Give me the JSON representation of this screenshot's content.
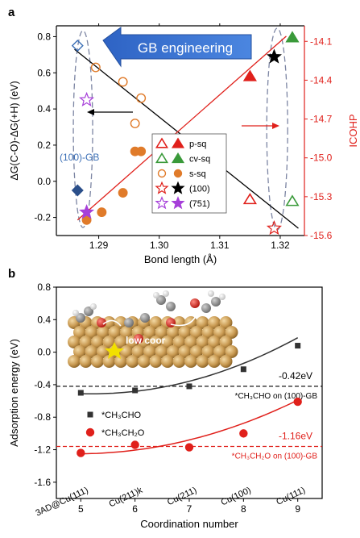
{
  "chart_data": [
    {
      "panel": "a",
      "type": "scatter",
      "xlabel": "Bond length (Å)",
      "ylabel": "ΔG(C-O)-ΔG(+H) (eV)",
      "y2label": "ICOHP",
      "xlim": [
        1.283,
        1.324
      ],
      "ylim": [
        -0.3,
        0.86
      ],
      "y2lim": [
        -15.6,
        -13.98
      ],
      "xticks": [
        "1.29",
        "1.30",
        "1.31",
        "1.32"
      ],
      "xtick_values": [
        1.29,
        1.3,
        1.31,
        1.32
      ],
      "yticks": [
        "-0.2",
        "0.0",
        "0.2",
        "0.4",
        "0.6",
        "0.8"
      ],
      "ytick_values": [
        -0.2,
        0.0,
        0.2,
        0.4,
        0.6,
        0.8
      ],
      "y2ticks": [
        "-15.6",
        "-15.3",
        "-15.0",
        "-14.7",
        "-14.4",
        "-14.1"
      ],
      "y2tick_values": [
        -15.6,
        -15.3,
        -15.0,
        -14.7,
        -14.4,
        -14.1
      ],
      "arrow_label": "GB engineering",
      "annotation": "(100)-GB",
      "legend": [
        {
          "label": "p-sq",
          "color": "#e0201b",
          "marker": "triangle"
        },
        {
          "label": "cv-sq",
          "color": "#3a9a3a",
          "marker": "triangle"
        },
        {
          "label": "s-sq",
          "color": "#e07b2a",
          "marker": "circle"
        },
        {
          "label": "(100)",
          "color": "#e0201b",
          "filled_color": "#000000",
          "marker": "star"
        },
        {
          "label": "(751)",
          "color": "#a63fd9",
          "filled_color": "#a63fd9",
          "marker": "star"
        }
      ],
      "series": [
        {
          "name": "p-sq",
          "axis": "left",
          "marker": "triangle",
          "filled": false,
          "color": "#e0201b",
          "points": [
            [
              1.315,
              -0.1
            ]
          ]
        },
        {
          "name": "cv-sq",
          "axis": "left",
          "marker": "triangle",
          "filled": false,
          "color": "#3a9a3a",
          "points": [
            [
              1.322,
              -0.11
            ]
          ]
        },
        {
          "name": "s-sq",
          "axis": "left",
          "marker": "circle",
          "filled": false,
          "color": "#e07b2a",
          "points": [
            [
              1.2895,
              0.63
            ],
            [
              1.294,
              0.55
            ],
            [
              1.296,
              0.32
            ],
            [
              1.297,
              0.46
            ]
          ]
        },
        {
          "name": "(100)",
          "axis": "left",
          "marker": "star",
          "filled": false,
          "color": "#e0201b",
          "points": [
            [
              1.319,
              -0.26
            ]
          ]
        },
        {
          "name": "(751)",
          "axis": "left",
          "marker": "star",
          "filled": false,
          "color": "#a63fd9",
          "points": [
            [
              1.288,
              0.45
            ]
          ]
        },
        {
          "name": "p-sq",
          "axis": "right",
          "marker": "triangle",
          "filled": true,
          "color": "#e0201b",
          "points": [
            [
              1.315,
              -14.37
            ]
          ]
        },
        {
          "name": "cv-sq",
          "axis": "right",
          "marker": "triangle",
          "filled": true,
          "color": "#3a9a3a",
          "points": [
            [
              1.322,
              -14.07
            ]
          ]
        },
        {
          "name": "s-sq",
          "axis": "right",
          "marker": "circle",
          "filled": true,
          "color": "#e07b2a",
          "points": [
            [
              1.288,
              -15.48
            ],
            [
              1.2905,
              -15.42
            ],
            [
              1.294,
              -15.27
            ],
            [
              1.296,
              -14.95
            ],
            [
              1.297,
              -14.95
            ]
          ]
        },
        {
          "name": "(100)",
          "axis": "right",
          "marker": "star",
          "filled": true,
          "color": "#000000",
          "points": [
            [
              1.319,
              -14.22
            ]
          ]
        },
        {
          "name": "(751)",
          "axis": "right",
          "marker": "star",
          "filled": true,
          "color": "#a63fd9",
          "points": [
            [
              1.288,
              -15.42
            ]
          ]
        },
        {
          "name": "diamond",
          "axis": "left",
          "marker": "diamond",
          "filled": false,
          "color": "#3b6fb6",
          "points": [
            [
              1.2865,
              0.75
            ]
          ]
        },
        {
          "name": "diamond",
          "axis": "left",
          "marker": "diamond",
          "filled": true,
          "color": "#2b4f8a",
          "points": [
            [
              1.2865,
              -0.05
            ]
          ]
        }
      ],
      "fit_lines": [
        {
          "axis": "left",
          "color": "#000000",
          "from": [
            1.286,
            0.73
          ],
          "to": [
            1.323,
            -0.26
          ]
        },
        {
          "axis": "right",
          "color": "#e0201b",
          "from": [
            1.2865,
            -15.48
          ],
          "to": [
            1.321,
            -14.06
          ]
        }
      ]
    },
    {
      "panel": "b",
      "type": "scatter",
      "xlabel": "Coordination number",
      "ylabel": "Adsorption energy (eV)",
      "xlim": [
        4.55,
        9.45
      ],
      "ylim": [
        -1.8,
        0.8
      ],
      "xticks": [
        "5",
        "6",
        "7",
        "8",
        "9"
      ],
      "xtick_values": [
        5,
        6,
        7,
        8,
        9
      ],
      "yticks": [
        "-1.6",
        "-1.2",
        "-0.8",
        "-0.4",
        "0.0",
        "0.4",
        "0.8"
      ],
      "ytick_values": [
        -1.6,
        -1.2,
        -0.8,
        -0.4,
        0.0,
        0.4,
        0.8
      ],
      "site_labels": [
        "3AD@Cu(111)",
        "Cu(211)k",
        "Cu(211)",
        "Cu(100)",
        "Cu(111)"
      ],
      "inset_label": "low coor",
      "series": [
        {
          "name": "*CH3CHO",
          "color": "#333333",
          "marker": "square",
          "x": [
            5,
            6,
            7,
            8,
            9
          ],
          "y": [
            -0.5,
            -0.47,
            -0.42,
            -0.21,
            0.08
          ]
        },
        {
          "name": "*CH3CH2O",
          "color": "#e0201b",
          "marker": "circle",
          "x": [
            5,
            6,
            7,
            8,
            9
          ],
          "y": [
            -1.24,
            -1.14,
            -1.17,
            -1.0,
            -0.61
          ]
        }
      ],
      "reference_lines": [
        {
          "value": -0.42,
          "label": "-0.42eV",
          "note": "*CH3CHO on (100)-GB",
          "color": "#000000"
        },
        {
          "value": -1.16,
          "label": "-1.16eV",
          "note": "*CH3CH2O on (100)-GB",
          "color": "#e0201b"
        }
      ],
      "legend": [
        {
          "label": "*CH3CHO",
          "color": "#333333",
          "marker": "square"
        },
        {
          "label": "*CH3CH2O",
          "color": "#e0201b",
          "marker": "circle"
        }
      ]
    }
  ],
  "panels": {
    "a_label": "a",
    "b_label": "b"
  }
}
